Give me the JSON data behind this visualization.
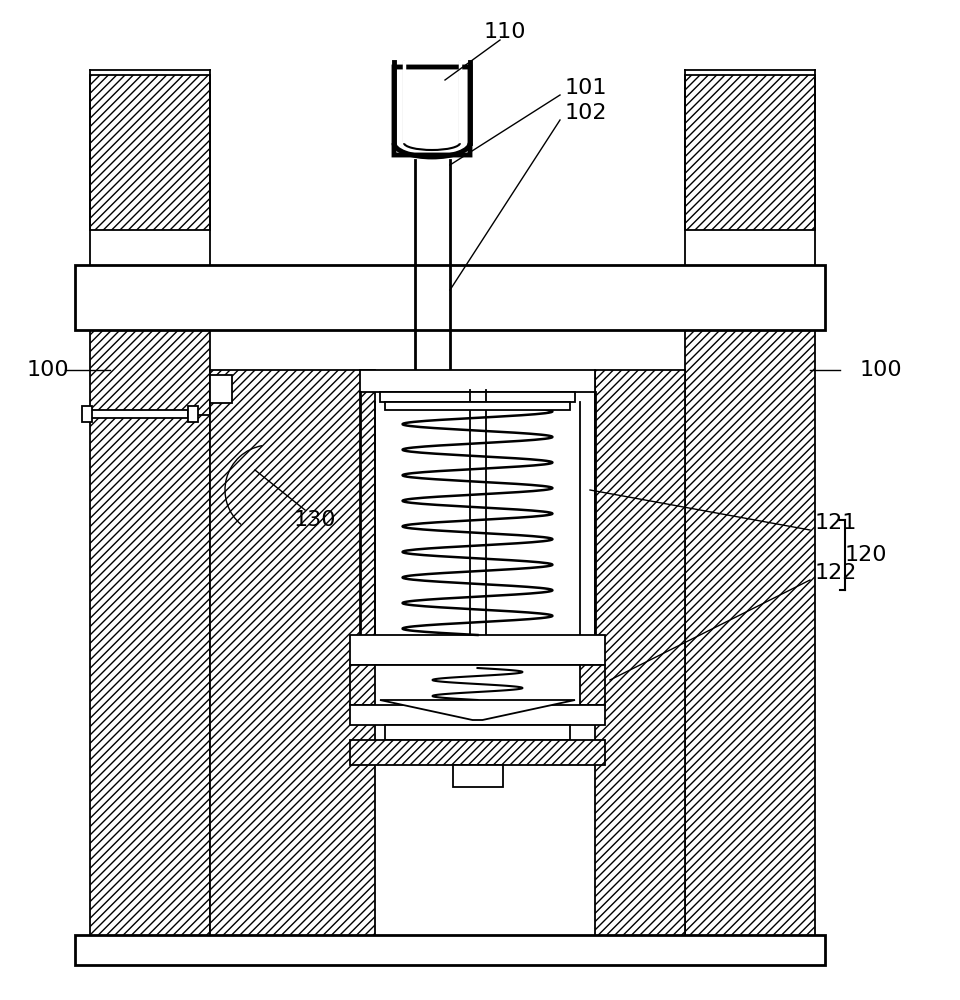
{
  "bg_color": "#ffffff",
  "lw": 1.3,
  "lw2": 2.0,
  "figsize": [
    9.6,
    10.0
  ],
  "dpi": 100,
  "font_size": 16
}
